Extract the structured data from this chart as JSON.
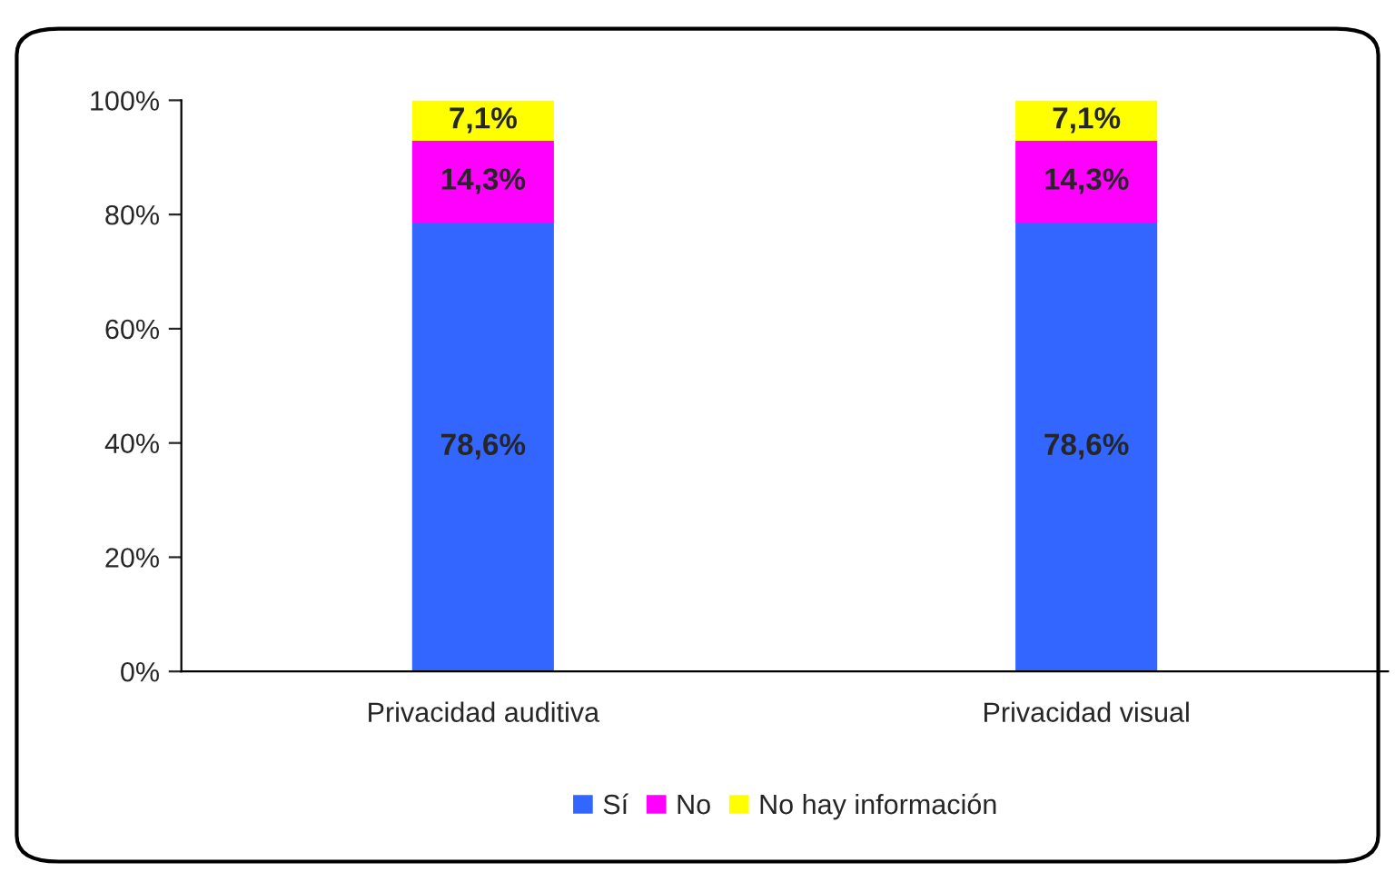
{
  "chart_data": {
    "type": "bar",
    "stacked": true,
    "categories": [
      "Privacidad auditiva",
      "Privacidad visual"
    ],
    "series": [
      {
        "name": "Sí",
        "color": "#3366ff",
        "values": [
          78.6,
          78.6
        ],
        "value_labels": [
          "78,6%",
          "78,6%"
        ]
      },
      {
        "name": "No",
        "color": "#ff00ff",
        "values": [
          14.3,
          14.3
        ],
        "value_labels": [
          "14,3%",
          "14,3%"
        ]
      },
      {
        "name": "No hay información",
        "color": "#ffff00",
        "values": [
          7.1,
          7.1
        ],
        "value_labels": [
          "7,1%",
          "7,1%"
        ]
      }
    ],
    "ylim": [
      0,
      100
    ],
    "yticks": [
      {
        "value": 0,
        "label": "0%"
      },
      {
        "value": 20,
        "label": "20%"
      },
      {
        "value": 40,
        "label": "40%"
      },
      {
        "value": 60,
        "label": "60%"
      },
      {
        "value": 80,
        "label": "80%"
      },
      {
        "value": 100,
        "label": "100%"
      }
    ],
    "grid": false,
    "legend": "bottom"
  }
}
